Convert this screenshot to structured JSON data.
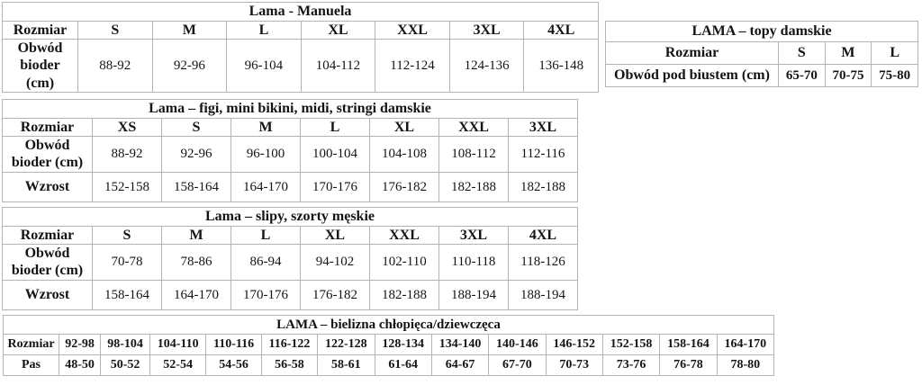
{
  "page": {
    "background_color": "#ffffff",
    "border_color": "#b4b4b4",
    "text_color": "#141414"
  },
  "tables": {
    "manuela": {
      "title": "Lama - Manuela",
      "size_header_label": "Rozmiar",
      "sizes": [
        "S",
        "M",
        "L",
        "XL",
        "XXL",
        "3XL",
        "4XL"
      ],
      "hips_label": "Obwód bioder (cm)",
      "hips": [
        "88-92",
        "92-96",
        "96-104",
        "104-112",
        "112-124",
        "124-136",
        "136-148"
      ]
    },
    "topy": {
      "title": "LAMA – topy damskie",
      "size_header_label": "Rozmiar",
      "sizes": [
        "S",
        "M",
        "L"
      ],
      "underbust_label": "Obwód pod biustem (cm)",
      "underbust": [
        "65-70",
        "70-75",
        "75-80"
      ]
    },
    "figi": {
      "title": "Lama – figi, mini bikini, midi, stringi damskie",
      "size_header_label": "Rozmiar",
      "sizes": [
        "XS",
        "S",
        "M",
        "L",
        "XL",
        "XXL",
        "3XL"
      ],
      "hips_label": "Obwód bioder (cm)",
      "hips": [
        "88-92",
        "92-96",
        "96-100",
        "100-104",
        "104-108",
        "108-112",
        "112-116"
      ],
      "height_label": "Wzrost",
      "height": [
        "152-158",
        "158-164",
        "164-170",
        "170-176",
        "176-182",
        "182-188",
        "182-188"
      ]
    },
    "slipy": {
      "title": "Lama – slipy, szorty męskie",
      "size_header_label": "Rozmiar",
      "sizes": [
        "S",
        "M",
        "L",
        "XL",
        "XXL",
        "3XL",
        "4XL"
      ],
      "hips_label": "Obwód bioder (cm)",
      "hips": [
        "70-78",
        "78-86",
        "86-94",
        "94-102",
        "102-110",
        "110-118",
        "118-126"
      ],
      "height_label": "Wzrost",
      "height": [
        "158-164",
        "164-170",
        "170-176",
        "176-182",
        "182-188",
        "188-194",
        "188-194"
      ]
    },
    "kids": {
      "title": "LAMA – bielizna chłopięca/dziewczęca",
      "size_header_label": "Rozmiar",
      "sizes": [
        "92-98",
        "98-104",
        "104-110",
        "110-116",
        "116-122",
        "122-128",
        "128-134",
        "134-140",
        "140-146",
        "146-152",
        "152-158",
        "158-164",
        "164-170"
      ],
      "waist_label": "Pas",
      "waist": [
        "48-50",
        "50-52",
        "52-54",
        "54-56",
        "56-58",
        "58-61",
        "61-64",
        "64-67",
        "67-70",
        "70-73",
        "73-76",
        "76-78",
        "78-80"
      ]
    }
  }
}
